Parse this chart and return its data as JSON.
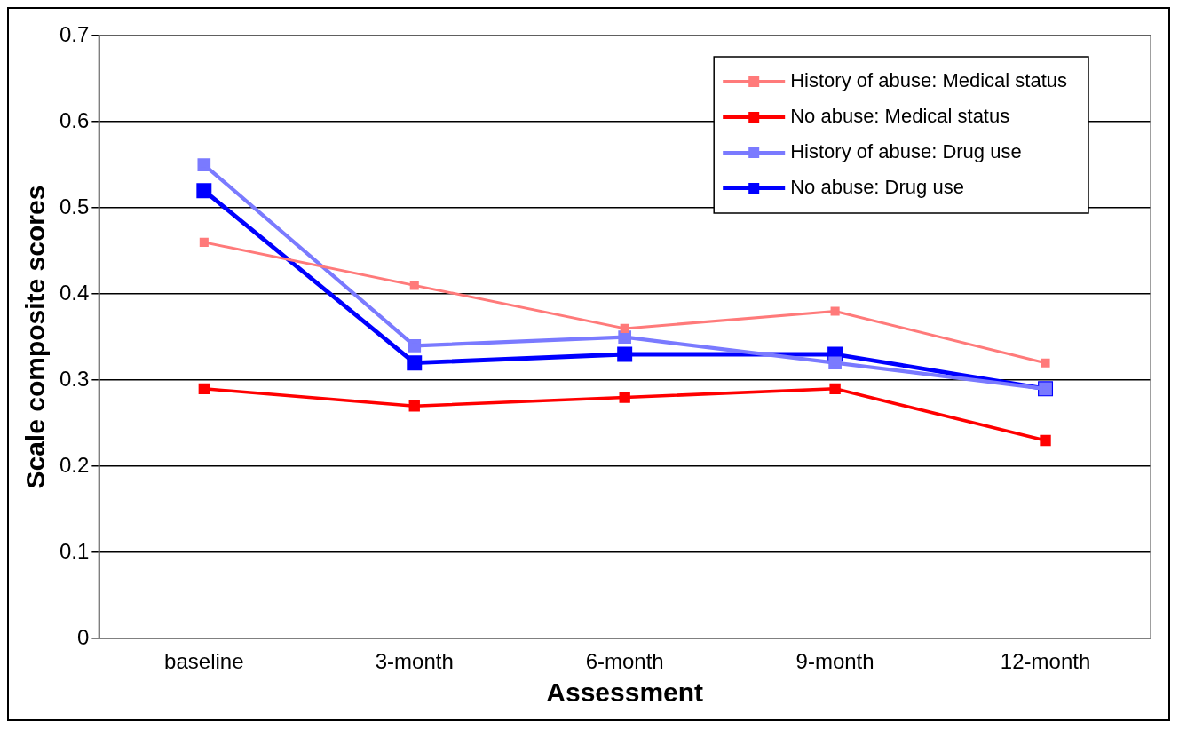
{
  "chart_data": {
    "type": "line",
    "xlabel": "Assessment",
    "ylabel": "Scale composite scores",
    "categories": [
      "baseline",
      "3-month",
      "6-month",
      "9-month",
      "12-month"
    ],
    "series": [
      {
        "name": "History of abuse: Medical status",
        "color": "#ff7a7a",
        "values": [
          0.46,
          0.41,
          0.36,
          0.38,
          0.32
        ]
      },
      {
        "name": "No abuse: Medical status",
        "color": "#ff0000",
        "values": [
          0.29,
          0.27,
          0.28,
          0.29,
          0.23
        ]
      },
      {
        "name": "History of abuse: Drug use",
        "color": "#7a7aff",
        "values": [
          0.55,
          0.34,
          0.35,
          0.32,
          0.29
        ]
      },
      {
        "name": "No abuse: Drug use",
        "color": "#0000ff",
        "values": [
          0.52,
          0.32,
          0.33,
          0.33,
          0.29
        ]
      }
    ],
    "ylim": [
      0,
      0.7
    ],
    "yticks": [
      0,
      0.1,
      0.2,
      0.3,
      0.4,
      0.5,
      0.6,
      0.7
    ],
    "grid": "y",
    "legend": "top right",
    "marker": "square",
    "line_style": "solid"
  }
}
